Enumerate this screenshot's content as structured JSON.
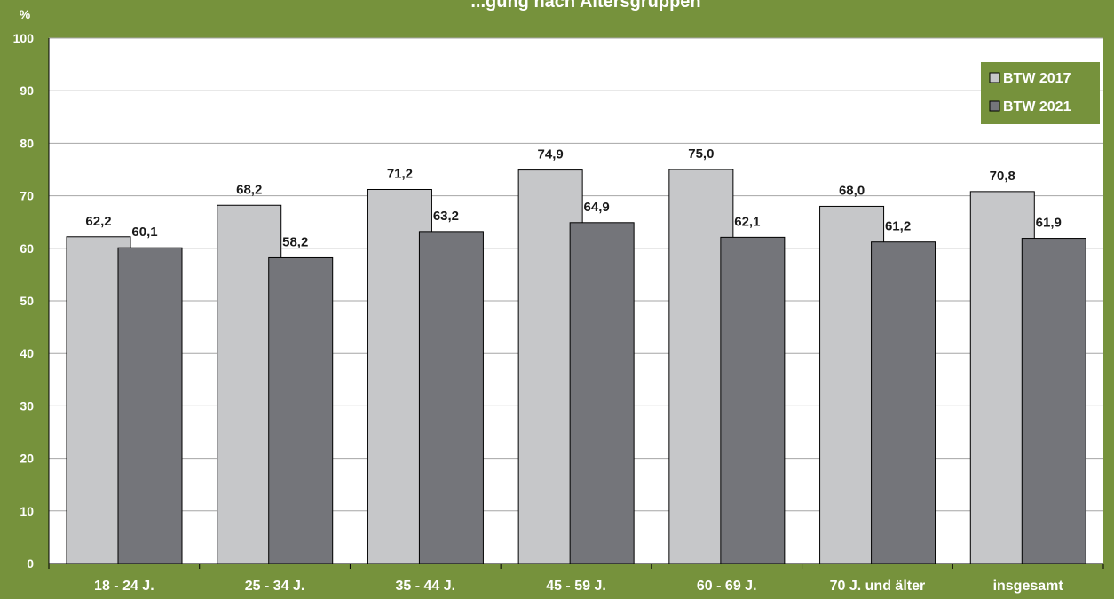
{
  "chart_data": {
    "type": "bar",
    "title": "...gung nach Altersgruppen",
    "ylabel": "%",
    "ylim": [
      0,
      100
    ],
    "yticks": [
      0,
      10,
      20,
      30,
      40,
      50,
      60,
      70,
      80,
      90,
      100
    ],
    "grid": true,
    "legend_position": "top-right",
    "categories": [
      "18 - 24 J.",
      "25 - 34 J.",
      "35 - 44 J.",
      "45 - 59 J.",
      "60 - 69 J.",
      "70 J. und älter",
      "insgesamt"
    ],
    "series": [
      {
        "name": "BTW 2017",
        "color": "#c6c7c9",
        "values": [
          62.2,
          68.2,
          71.2,
          74.9,
          75.0,
          68.0,
          70.8
        ],
        "labels": [
          "62,2",
          "68,2",
          "71,2",
          "74,9",
          "75,0",
          "68,0",
          "70,8"
        ]
      },
      {
        "name": "BTW 2021",
        "color": "#74757a",
        "values": [
          60.1,
          58.2,
          63.2,
          64.9,
          62.1,
          61.2,
          61.9
        ],
        "labels": [
          "60,1",
          "58,2",
          "63,2",
          "64,9",
          "62,1",
          "61,2",
          "61,9"
        ]
      }
    ]
  },
  "colors": {
    "background": "#76923c",
    "plot_area": "#ffffff",
    "gridline": "#a6a6a6",
    "bar_outline": "#000000"
  }
}
